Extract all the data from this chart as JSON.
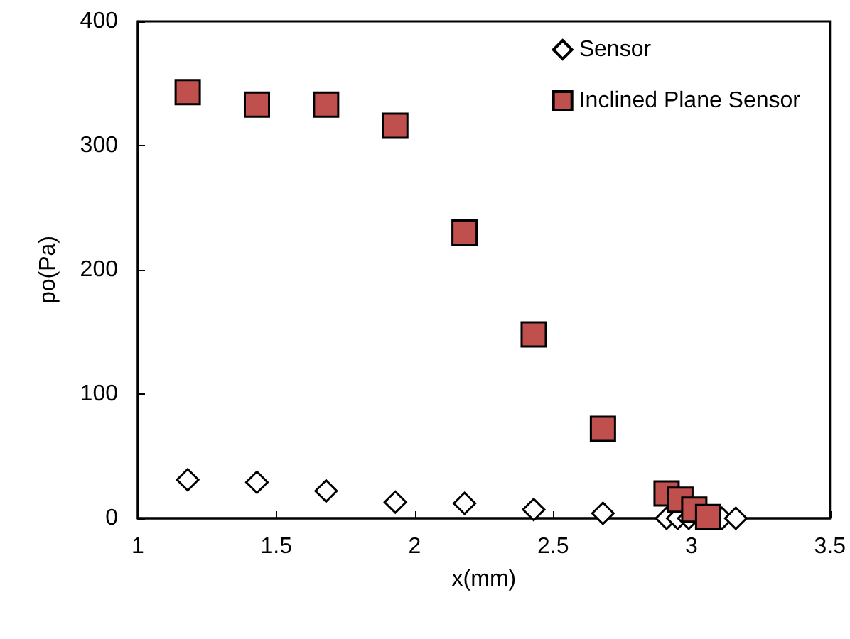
{
  "chart_data": {
    "type": "scatter",
    "xlabel": "x(mm)",
    "ylabel": "po(Pa)",
    "xlim": [
      1,
      3.5
    ],
    "xticks": [
      1,
      1.5,
      2,
      2.5,
      3,
      3.5
    ],
    "ylim": [
      0,
      400
    ],
    "yticks": [
      0,
      100,
      200,
      300,
      400
    ],
    "grid": false,
    "legend": "top right",
    "series": [
      {
        "name": "Sensor",
        "color": "#ffffff",
        "marker": "diamond",
        "x": [
          1.18,
          1.43,
          1.68,
          1.93,
          2.18,
          2.43,
          2.68,
          2.91,
          2.95,
          2.99,
          3.11,
          3.16
        ],
        "values": [
          31,
          29,
          22,
          13,
          12,
          7,
          4,
          0,
          0,
          0,
          0,
          0
        ]
      },
      {
        "name": "Inclined Plane Sensor",
        "color": "#c0504d",
        "marker": "square",
        "x": [
          1.18,
          1.43,
          1.68,
          1.93,
          2.18,
          2.43,
          2.68,
          2.91,
          2.96,
          3.01,
          3.06
        ],
        "values": [
          343,
          333,
          333,
          316,
          230,
          148,
          72,
          20,
          15,
          7,
          1
        ]
      }
    ]
  }
}
